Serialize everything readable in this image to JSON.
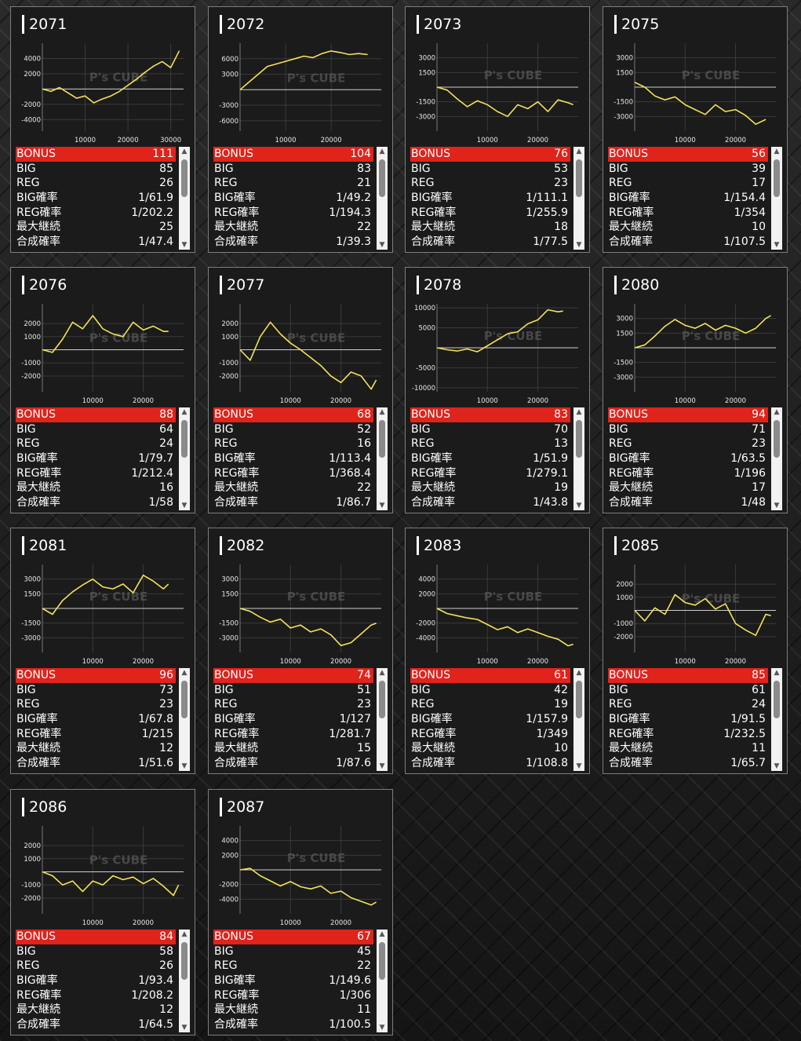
{
  "colors": {
    "line": "#f2e35b",
    "bonus_bg": "#e0231b",
    "axis": "#cfcfcf",
    "grid": "#3a3a3a"
  },
  "watermark": "P's CUBE",
  "labels": {
    "bonus": "BONUS",
    "big": "BIG",
    "reg": "REG",
    "big_rate": "BIG確率",
    "reg_rate": "REG確率",
    "max_streak": "最大継続",
    "combined_rate": "合成確率"
  },
  "machines": [
    {
      "id": "2071",
      "bonus": "111",
      "big": "85",
      "reg": "26",
      "big_rate": "1/61.9",
      "reg_rate": "1/202.2",
      "max_streak": "25",
      "combined_rate": "1/47.4"
    },
    {
      "id": "2072",
      "bonus": "104",
      "big": "83",
      "reg": "21",
      "big_rate": "1/49.2",
      "reg_rate": "1/194.3",
      "max_streak": "22",
      "combined_rate": "1/39.3"
    },
    {
      "id": "2073",
      "bonus": "76",
      "big": "53",
      "reg": "23",
      "big_rate": "1/111.1",
      "reg_rate": "1/255.9",
      "max_streak": "18",
      "combined_rate": "1/77.5"
    },
    {
      "id": "2075",
      "bonus": "56",
      "big": "39",
      "reg": "17",
      "big_rate": "1/154.4",
      "reg_rate": "1/354",
      "max_streak": "10",
      "combined_rate": "1/107.5"
    },
    {
      "id": "2076",
      "bonus": "88",
      "big": "64",
      "reg": "24",
      "big_rate": "1/79.7",
      "reg_rate": "1/212.4",
      "max_streak": "16",
      "combined_rate": "1/58"
    },
    {
      "id": "2077",
      "bonus": "68",
      "big": "52",
      "reg": "16",
      "big_rate": "1/113.4",
      "reg_rate": "1/368.4",
      "max_streak": "22",
      "combined_rate": "1/86.7"
    },
    {
      "id": "2078",
      "bonus": "83",
      "big": "70",
      "reg": "13",
      "big_rate": "1/51.9",
      "reg_rate": "1/279.1",
      "max_streak": "19",
      "combined_rate": "1/43.8"
    },
    {
      "id": "2080",
      "bonus": "94",
      "big": "71",
      "reg": "23",
      "big_rate": "1/63.5",
      "reg_rate": "1/196",
      "max_streak": "17",
      "combined_rate": "1/48"
    },
    {
      "id": "2081",
      "bonus": "96",
      "big": "73",
      "reg": "23",
      "big_rate": "1/67.8",
      "reg_rate": "1/215",
      "max_streak": "12",
      "combined_rate": "1/51.6"
    },
    {
      "id": "2082",
      "bonus": "74",
      "big": "51",
      "reg": "23",
      "big_rate": "1/127",
      "reg_rate": "1/281.7",
      "max_streak": "15",
      "combined_rate": "1/87.6"
    },
    {
      "id": "2083",
      "bonus": "61",
      "big": "42",
      "reg": "19",
      "big_rate": "1/157.9",
      "reg_rate": "1/349",
      "max_streak": "10",
      "combined_rate": "1/108.8"
    },
    {
      "id": "2085",
      "bonus": "85",
      "big": "61",
      "reg": "24",
      "big_rate": "1/91.5",
      "reg_rate": "1/232.5",
      "max_streak": "11",
      "combined_rate": "1/65.7"
    },
    {
      "id": "2086",
      "bonus": "84",
      "big": "58",
      "reg": "26",
      "big_rate": "1/93.4",
      "reg_rate": "1/208.2",
      "max_streak": "12",
      "combined_rate": "1/64.5"
    },
    {
      "id": "2087",
      "bonus": "67",
      "big": "45",
      "reg": "22",
      "big_rate": "1/149.6",
      "reg_rate": "1/306",
      "max_streak": "11",
      "combined_rate": "1/100.5"
    }
  ],
  "chart_data": [
    {
      "type": "line",
      "title": "2071",
      "xlim": [
        0,
        33000
      ],
      "ylim": [
        -5500,
        6000
      ],
      "x_ticks": [
        10000,
        20000,
        30000
      ],
      "y_ticks": [
        4000,
        2000,
        -2000,
        -4000
      ],
      "x": [
        0,
        2000,
        4000,
        6000,
        8000,
        10000,
        12000,
        14000,
        16000,
        18000,
        20000,
        22000,
        24000,
        26000,
        28000,
        30000,
        32000
      ],
      "y": [
        0,
        -300,
        200,
        -500,
        -1200,
        -900,
        -1800,
        -1300,
        -900,
        -300,
        500,
        1300,
        2200,
        3000,
        3600,
        2800,
        5000
      ]
    },
    {
      "type": "line",
      "title": "2072",
      "xlim": [
        0,
        31000
      ],
      "ylim": [
        -8000,
        9000
      ],
      "x_ticks": [
        10000,
        20000
      ],
      "y_ticks": [
        6000,
        3000,
        -3000,
        -6000
      ],
      "x": [
        0,
        2000,
        4000,
        6000,
        8000,
        10000,
        12000,
        14000,
        16000,
        18000,
        20000,
        22000,
        24000,
        26000,
        28000
      ],
      "y": [
        0,
        1500,
        3000,
        4500,
        5000,
        5500,
        6000,
        6500,
        6200,
        7000,
        7500,
        7200,
        6800,
        7000,
        6800
      ]
    },
    {
      "type": "line",
      "title": "2073",
      "xlim": [
        0,
        28000
      ],
      "ylim": [
        -4500,
        4500
      ],
      "x_ticks": [
        10000,
        20000
      ],
      "y_ticks": [
        3000,
        1500,
        -1500,
        -3000
      ],
      "x": [
        0,
        2000,
        4000,
        6000,
        8000,
        10000,
        12000,
        14000,
        16000,
        18000,
        20000,
        22000,
        24000,
        26000,
        27000
      ],
      "y": [
        0,
        -300,
        -1200,
        -2000,
        -1400,
        -1800,
        -2500,
        -3000,
        -1800,
        -2200,
        -1500,
        -2500,
        -1300,
        -1600,
        -1800
      ]
    },
    {
      "type": "line",
      "title": "2075",
      "xlim": [
        0,
        28000
      ],
      "ylim": [
        -4500,
        4500
      ],
      "x_ticks": [
        10000,
        20000
      ],
      "y_ticks": [
        3000,
        1500,
        -1500,
        -3000
      ],
      "x": [
        0,
        2000,
        4000,
        6000,
        8000,
        10000,
        12000,
        14000,
        16000,
        18000,
        20000,
        22000,
        24000,
        26000
      ],
      "y": [
        500,
        0,
        -900,
        -1300,
        -1000,
        -1800,
        -2300,
        -2800,
        -1800,
        -2500,
        -2300,
        -2900,
        -3800,
        -3300
      ]
    },
    {
      "type": "line",
      "title": "2076",
      "xlim": [
        0,
        28000
      ],
      "ylim": [
        -3200,
        3500
      ],
      "x_ticks": [
        10000,
        20000
      ],
      "y_ticks": [
        2000,
        1000,
        -1000,
        -2000
      ],
      "x": [
        0,
        2000,
        4000,
        6000,
        8000,
        10000,
        12000,
        14000,
        16000,
        18000,
        20000,
        22000,
        24000,
        25000
      ],
      "y": [
        0,
        -200,
        800,
        2100,
        1600,
        2600,
        1600,
        1200,
        1000,
        2100,
        1500,
        1800,
        1400,
        1400
      ]
    },
    {
      "type": "line",
      "title": "2077",
      "xlim": [
        0,
        28000
      ],
      "ylim": [
        -3200,
        3500
      ],
      "x_ticks": [
        10000,
        20000
      ],
      "y_ticks": [
        2000,
        1000,
        -1000,
        -2000
      ],
      "x": [
        0,
        2000,
        4000,
        6000,
        8000,
        10000,
        12000,
        14000,
        16000,
        18000,
        20000,
        22000,
        24000,
        26000,
        27000
      ],
      "y": [
        0,
        -800,
        1000,
        2100,
        1200,
        500,
        0,
        -600,
        -1200,
        -2000,
        -2500,
        -1700,
        -2000,
        -3000,
        -2300
      ]
    },
    {
      "type": "line",
      "title": "2078",
      "xlim": [
        0,
        28000
      ],
      "ylim": [
        -11000,
        11000
      ],
      "x_ticks": [
        10000,
        20000
      ],
      "y_ticks": [
        10000,
        5000,
        -5000,
        -10000
      ],
      "x": [
        0,
        2000,
        4000,
        6000,
        8000,
        10000,
        12000,
        14000,
        16000,
        18000,
        20000,
        22000,
        24000,
        25000
      ],
      "y": [
        0,
        -500,
        -800,
        -300,
        -1000,
        500,
        2000,
        3500,
        4000,
        6000,
        7000,
        9500,
        9000,
        9200
      ]
    },
    {
      "type": "line",
      "title": "2080",
      "xlim": [
        0,
        28000
      ],
      "ylim": [
        -4500,
        4500
      ],
      "x_ticks": [
        10000,
        20000
      ],
      "y_ticks": [
        3000,
        1500,
        -1500,
        -3000
      ],
      "x": [
        0,
        2000,
        4000,
        6000,
        8000,
        10000,
        12000,
        14000,
        16000,
        18000,
        20000,
        22000,
        24000,
        26000,
        27000
      ],
      "y": [
        0,
        300,
        1200,
        2200,
        2900,
        2300,
        2000,
        2500,
        1800,
        2300,
        2000,
        1500,
        2000,
        3000,
        3300
      ]
    },
    {
      "type": "line",
      "title": "2081",
      "xlim": [
        0,
        28000
      ],
      "ylim": [
        -4500,
        4500
      ],
      "x_ticks": [
        10000,
        20000
      ],
      "y_ticks": [
        3000,
        1500,
        -1500,
        -3000
      ],
      "x": [
        0,
        2000,
        4000,
        6000,
        8000,
        10000,
        12000,
        14000,
        16000,
        18000,
        20000,
        22000,
        24000,
        25000
      ],
      "y": [
        0,
        -600,
        800,
        1700,
        2400,
        3000,
        2200,
        2000,
        2500,
        1600,
        3400,
        2800,
        2000,
        2500
      ]
    },
    {
      "type": "line",
      "title": "2082",
      "xlim": [
        0,
        28000
      ],
      "ylim": [
        -4500,
        4500
      ],
      "x_ticks": [
        10000,
        20000
      ],
      "y_ticks": [
        3000,
        1500,
        -1500,
        -3000
      ],
      "x": [
        0,
        2000,
        4000,
        6000,
        8000,
        10000,
        12000,
        14000,
        16000,
        18000,
        20000,
        22000,
        24000,
        26000,
        27000
      ],
      "y": [
        0,
        -300,
        -900,
        -1400,
        -1100,
        -2000,
        -1700,
        -2400,
        -2100,
        -2700,
        -3800,
        -3500,
        -2600,
        -1700,
        -1500
      ]
    },
    {
      "type": "line",
      "title": "2083",
      "xlim": [
        0,
        28000
      ],
      "ylim": [
        -6000,
        6000
      ],
      "x_ticks": [
        10000,
        20000
      ],
      "y_ticks": [
        4000,
        2000,
        -2000,
        -4000
      ],
      "x": [
        0,
        2000,
        4000,
        6000,
        8000,
        10000,
        12000,
        14000,
        16000,
        18000,
        20000,
        22000,
        24000,
        26000,
        27000
      ],
      "y": [
        0,
        -700,
        -1000,
        -1300,
        -1500,
        -2200,
        -2900,
        -2500,
        -3300,
        -2800,
        -3300,
        -3800,
        -4200,
        -5100,
        -4900
      ]
    },
    {
      "type": "line",
      "title": "2085",
      "xlim": [
        0,
        28000
      ],
      "ylim": [
        -3200,
        3500
      ],
      "x_ticks": [
        10000,
        20000
      ],
      "y_ticks": [
        2000,
        1000,
        -1000,
        -2000
      ],
      "x": [
        0,
        2000,
        4000,
        6000,
        8000,
        10000,
        12000,
        14000,
        16000,
        18000,
        20000,
        22000,
        24000,
        26000,
        27000
      ],
      "y": [
        0,
        -800,
        200,
        -300,
        1200,
        600,
        400,
        900,
        100,
        500,
        -1000,
        -1500,
        -1900,
        -300,
        -400
      ]
    },
    {
      "type": "line",
      "title": "2086",
      "xlim": [
        0,
        28000
      ],
      "ylim": [
        -3200,
        3500
      ],
      "x_ticks": [
        10000,
        20000
      ],
      "y_ticks": [
        2000,
        1000,
        -1000,
        -2000
      ],
      "x": [
        0,
        2000,
        4000,
        6000,
        8000,
        10000,
        12000,
        14000,
        16000,
        18000,
        20000,
        22000,
        24000,
        26000,
        27000
      ],
      "y": [
        0,
        -300,
        -1000,
        -700,
        -1500,
        -700,
        -1000,
        -300,
        -600,
        -400,
        -900,
        -500,
        -1100,
        -1800,
        -1000
      ]
    },
    {
      "type": "line",
      "title": "2087",
      "xlim": [
        0,
        28000
      ],
      "ylim": [
        -6000,
        6000
      ],
      "x_ticks": [
        10000,
        20000
      ],
      "y_ticks": [
        4000,
        2000,
        -2000,
        -4000
      ],
      "x": [
        0,
        2000,
        4000,
        6000,
        8000,
        10000,
        12000,
        14000,
        16000,
        18000,
        20000,
        22000,
        24000,
        26000,
        27000
      ],
      "y": [
        0,
        200,
        -800,
        -1500,
        -2200,
        -1600,
        -2300,
        -2600,
        -2200,
        -3200,
        -2900,
        -3800,
        -4300,
        -4800,
        -4400
      ]
    }
  ]
}
